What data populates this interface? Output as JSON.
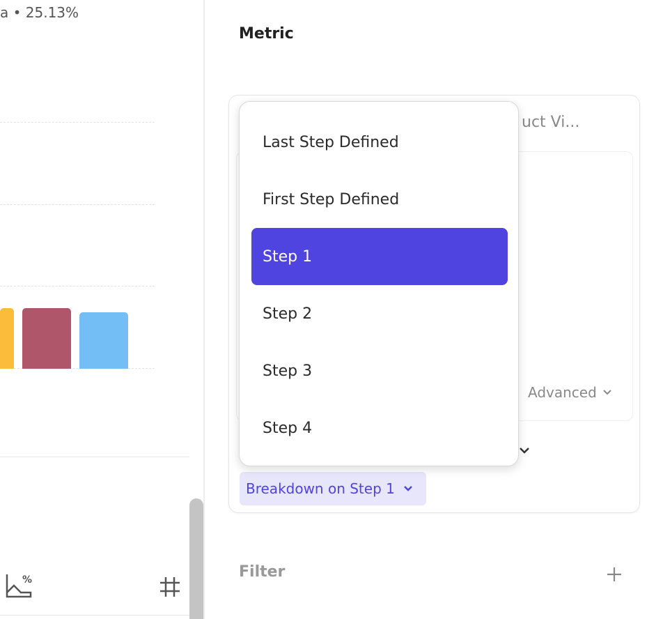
{
  "chart_header": {
    "summary": "a • 25.13%"
  },
  "chart": {
    "bars": [
      {
        "color": "#FBBC3C",
        "level": 0.74
      },
      {
        "color": "#B0566B",
        "level": 0.74
      },
      {
        "color": "#73BEF5",
        "level": 0.69
      }
    ]
  },
  "toolbar": {
    "icons": [
      "chart-percent-icon",
      "hash-icon"
    ]
  },
  "metric": {
    "title": "Metric",
    "step_name": "uct Vi...",
    "advanced_label": "Advanced",
    "breakdown_label": "Breakdown on Step 1"
  },
  "dropdown": {
    "items": [
      "Last Step Defined",
      "First Step Defined",
      "Step 1",
      "Step 2",
      "Step 3",
      "Step 4"
    ],
    "selected": "Step 1"
  },
  "filter": {
    "label": "Filter"
  },
  "colors": {
    "accent": "#4F44E0",
    "accent_bg": "#E8E6FB"
  }
}
